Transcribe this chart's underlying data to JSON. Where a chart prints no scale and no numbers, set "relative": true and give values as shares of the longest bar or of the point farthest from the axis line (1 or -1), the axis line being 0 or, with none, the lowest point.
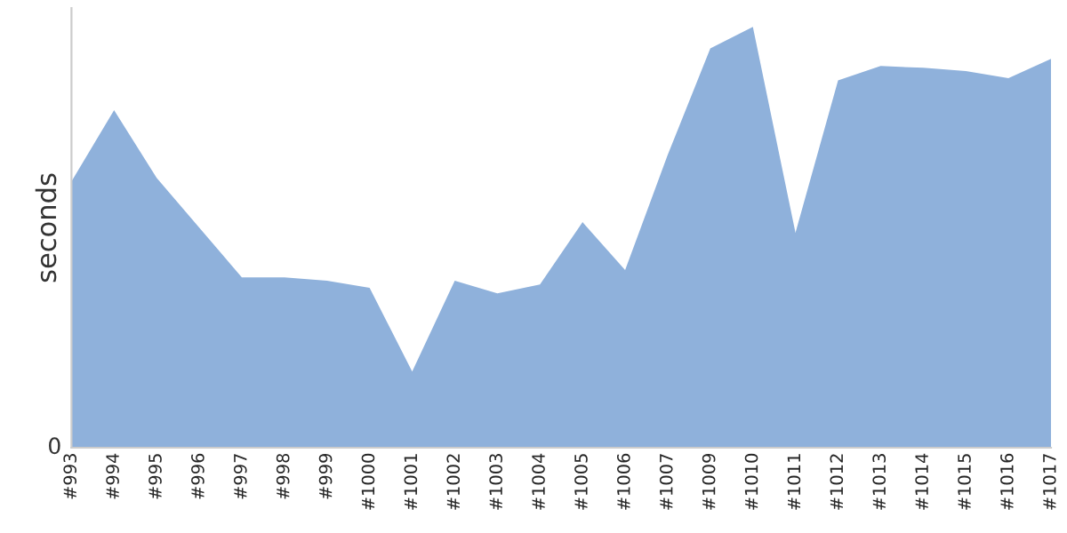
{
  "chart_data": {
    "type": "area",
    "ylabel": "seconds",
    "relative": true,
    "annotations": [
      "0"
    ],
    "categories": [
      "#993",
      "#994",
      "#995",
      "#996",
      "#997",
      "#998",
      "#999",
      "#1000",
      "#1001",
      "#1002",
      "#1003",
      "#1004",
      "#1005",
      "#1006",
      "#1007",
      "#1009",
      "#1010",
      "#1011",
      "#1012",
      "#1013",
      "#1014",
      "#1015",
      "#1016",
      "#1017"
    ],
    "series": [
      {
        "color": "#8fb1db",
        "values": [
          0.633,
          0.802,
          0.641,
          0.523,
          0.405,
          0.405,
          0.397,
          0.38,
          0.181,
          0.397,
          0.367,
          0.388,
          0.536,
          0.422,
          0.696,
          0.949,
          1.0,
          0.511,
          0.873,
          0.907,
          0.903,
          0.895,
          0.878,
          0.924
        ]
      }
    ]
  }
}
